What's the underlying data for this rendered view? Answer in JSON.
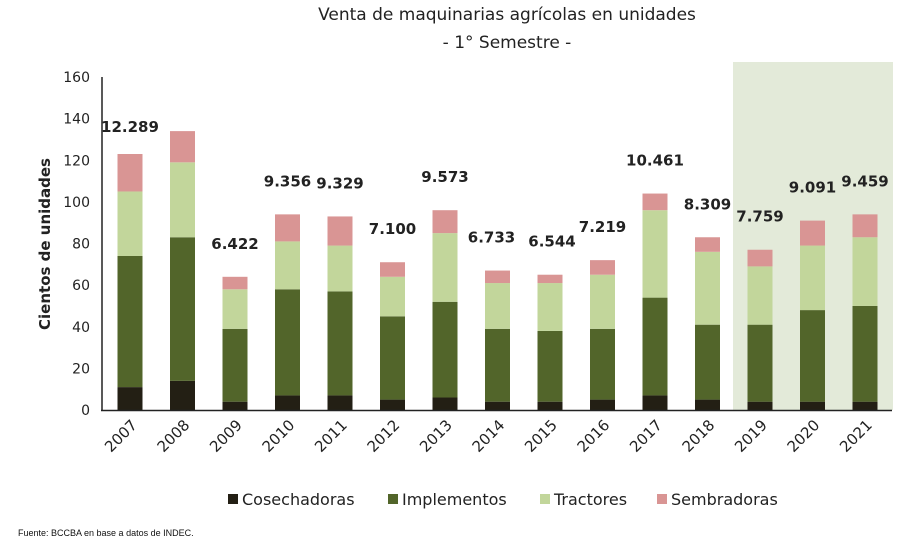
{
  "chart_data": {
    "type": "bar",
    "stacked": true,
    "title": "Venta de maquinarias agrícolas en unidades",
    "subtitle": "- 1° Semestre -",
    "xlabel": "",
    "ylabel": "Cientos de unidades",
    "ylim": [
      0,
      160
    ],
    "yticks": [
      0,
      20,
      40,
      60,
      80,
      100,
      120,
      140,
      160
    ],
    "grid": false,
    "legend_position": "bottom",
    "highlight_categories": [
      "2019",
      "2020",
      "2021"
    ],
    "highlight_color": "#e3ead9",
    "categories": [
      "2007",
      "2008",
      "2009",
      "2010",
      "2011",
      "2012",
      "2013",
      "2014",
      "2015",
      "2016",
      "2017",
      "2018",
      "2019",
      "2020",
      "2021"
    ],
    "series": [
      {
        "name": "Cosechadoras",
        "color": "#231f14",
        "values": [
          11,
          14,
          4,
          7,
          7,
          5,
          6,
          4,
          4,
          5,
          7,
          5,
          4,
          4,
          4
        ]
      },
      {
        "name": "Implementos",
        "color": "#52652a",
        "values": [
          63,
          69,
          35,
          51,
          50,
          40,
          46,
          35,
          34,
          34,
          47,
          36,
          37,
          44,
          46
        ]
      },
      {
        "name": "Tractores",
        "color": "#c2d69b",
        "values": [
          31,
          36,
          19,
          23,
          22,
          19,
          33,
          22,
          23,
          26,
          42,
          35,
          28,
          31,
          33
        ]
      },
      {
        "name": "Sembradoras",
        "color": "#d99594",
        "values": [
          18,
          15,
          6,
          13,
          14,
          7,
          11,
          6,
          4,
          7,
          8,
          7,
          8,
          12,
          11
        ]
      }
    ],
    "data_labels": [
      "12.289",
      "",
      "6.422",
      "9.356",
      "9.329",
      "7.100",
      "9.573",
      "6.733",
      "6.544",
      "7.219",
      "10.461",
      "8.309",
      "7.759",
      "9.091",
      "9.459"
    ]
  },
  "source": "Fuente: BCCBA en base a datos de INDEC."
}
